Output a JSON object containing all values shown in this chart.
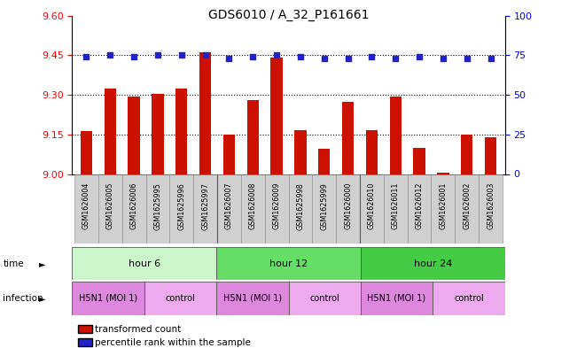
{
  "title": "GDS6010 / A_32_P161661",
  "samples": [
    "GSM1626004",
    "GSM1626005",
    "GSM1626006",
    "GSM1625995",
    "GSM1625996",
    "GSM1625997",
    "GSM1626007",
    "GSM1626008",
    "GSM1626009",
    "GSM1625998",
    "GSM1625999",
    "GSM1626000",
    "GSM1626010",
    "GSM1626011",
    "GSM1626012",
    "GSM1626001",
    "GSM1626002",
    "GSM1626003"
  ],
  "red_values": [
    9.162,
    9.325,
    9.295,
    9.305,
    9.325,
    9.46,
    9.15,
    9.28,
    9.44,
    9.165,
    9.095,
    9.275,
    9.165,
    9.295,
    9.1,
    9.005,
    9.15,
    9.14
  ],
  "blue_values": [
    74,
    75,
    74,
    75,
    75,
    75,
    73,
    74,
    75,
    74,
    73,
    73,
    74,
    73,
    74,
    73,
    73,
    73
  ],
  "ylim_left": [
    9.0,
    9.6
  ],
  "ylim_right": [
    0,
    100
  ],
  "yticks_left": [
    9.0,
    9.15,
    9.3,
    9.45,
    9.6
  ],
  "yticks_right": [
    0,
    25,
    50,
    75,
    100
  ],
  "hlines": [
    9.15,
    9.3,
    9.45
  ],
  "groups": [
    {
      "label": "hour 6",
      "start": 0,
      "end": 6,
      "color": "#ccf5cc"
    },
    {
      "label": "hour 12",
      "start": 6,
      "end": 12,
      "color": "#66dd66"
    },
    {
      "label": "hour 24",
      "start": 12,
      "end": 18,
      "color": "#44cc44"
    }
  ],
  "infections": [
    {
      "label": "H5N1 (MOI 1)",
      "start": 0,
      "end": 3,
      "color": "#dd88dd"
    },
    {
      "label": "control",
      "start": 3,
      "end": 6,
      "color": "#eeaaee"
    },
    {
      "label": "H5N1 (MOI 1)",
      "start": 6,
      "end": 9,
      "color": "#dd88dd"
    },
    {
      "label": "control",
      "start": 9,
      "end": 12,
      "color": "#eeaaee"
    },
    {
      "label": "H5N1 (MOI 1)",
      "start": 12,
      "end": 15,
      "color": "#dd88dd"
    },
    {
      "label": "control",
      "start": 15,
      "end": 18,
      "color": "#eeaaee"
    }
  ],
  "bar_color": "#cc1100",
  "dot_color": "#2222cc",
  "background_color": "#ffffff",
  "legend_red": "transformed count",
  "legend_blue": "percentile rank within the sample",
  "time_label": "time",
  "infection_label": "infection",
  "group_separators": [
    6,
    12
  ]
}
